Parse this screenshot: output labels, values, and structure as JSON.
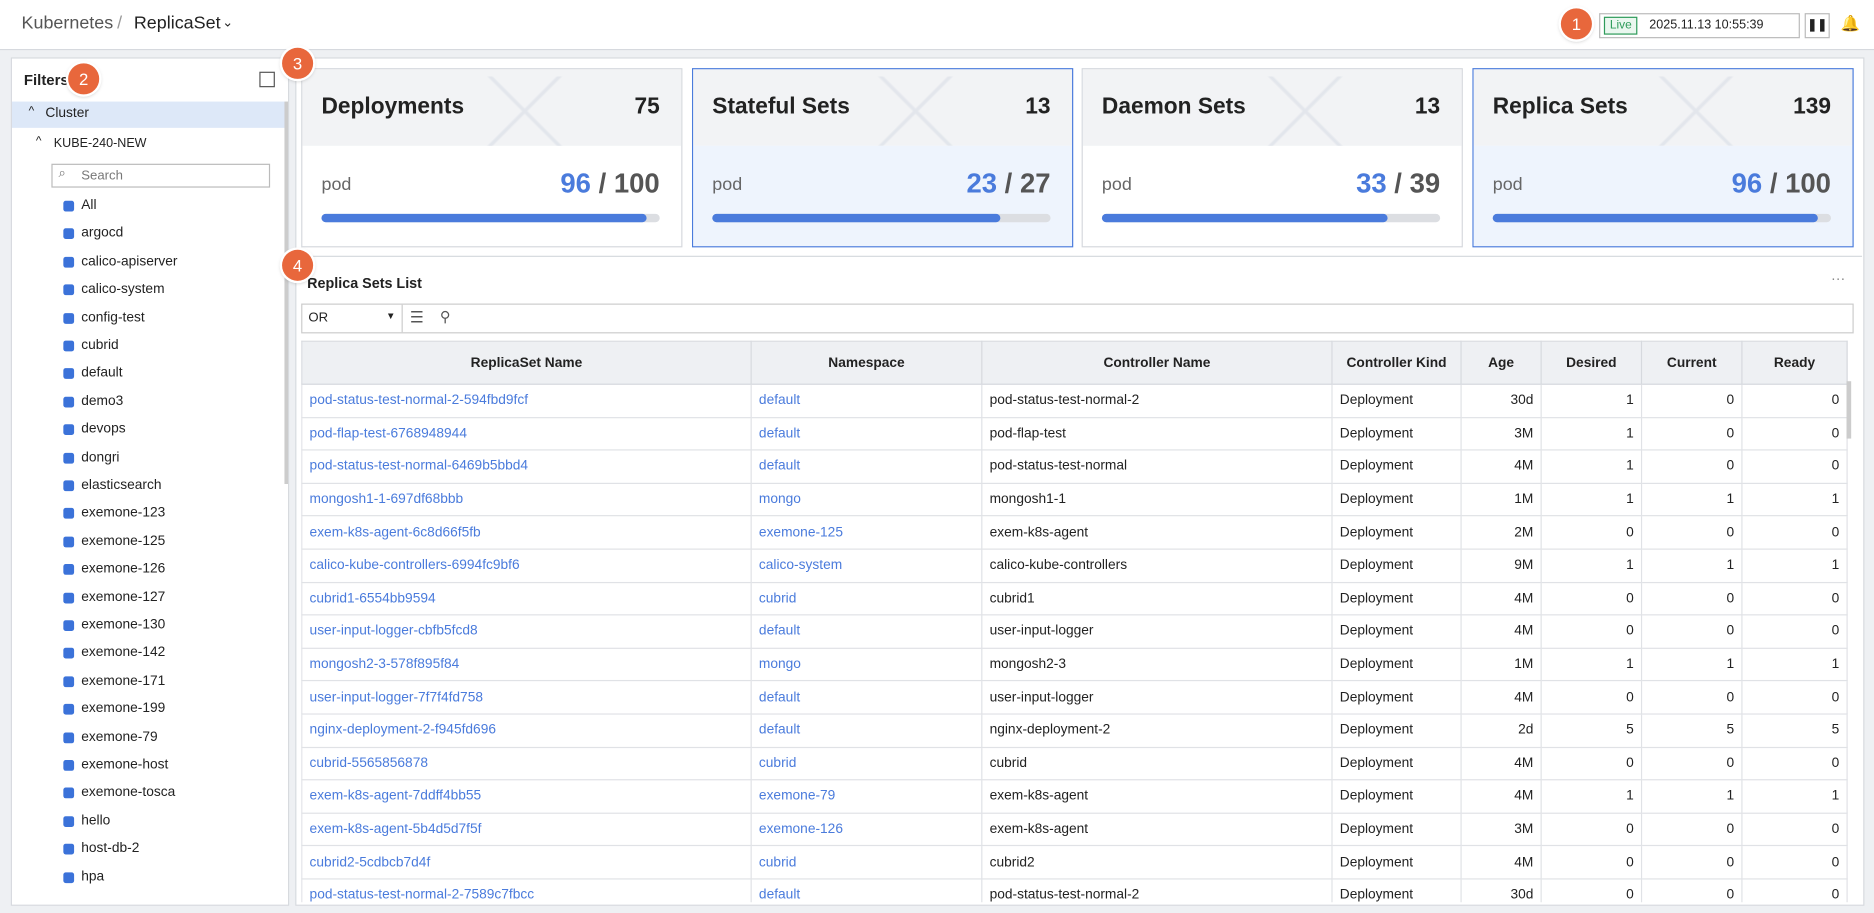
{
  "header": {
    "breadcrumb": [
      "Kubernetes",
      "ReplicaSet"
    ],
    "live": "Live",
    "timestamp": "2025.11.13 10:55:39"
  },
  "callouts": [
    "1",
    "2",
    "3",
    "4"
  ],
  "filters": {
    "title": "Filters",
    "cluster": "Cluster",
    "cluster_name": "KUBE-240-NEW",
    "search_placeholder": "Search",
    "items": [
      "All",
      "argocd",
      "calico-apiserver",
      "calico-system",
      "config-test",
      "cubrid",
      "default",
      "demo3",
      "devops",
      "dongri",
      "elasticsearch",
      "exemone-123",
      "exemone-125",
      "exemone-126",
      "exemone-127",
      "exemone-130",
      "exemone-142",
      "exemone-171",
      "exemone-199",
      "exemone-79",
      "exemone-host",
      "exemone-tosca",
      "hello",
      "host-db-2",
      "hpa"
    ]
  },
  "cards": [
    {
      "title": "Deployments",
      "count": "75",
      "label": "pod",
      "current": 96,
      "total": 100
    },
    {
      "title": "Stateful Sets",
      "count": "13",
      "label": "pod",
      "current": 23,
      "total": 27
    },
    {
      "title": "Daemon Sets",
      "count": "13",
      "label": "pod",
      "current": 33,
      "total": 39
    },
    {
      "title": "Replica Sets",
      "count": "139",
      "label": "pod",
      "current": 96,
      "total": 100
    }
  ],
  "table": {
    "title": "Replica Sets List",
    "operator": "OR",
    "columns": [
      "ReplicaSet Name",
      "Namespace",
      "Controller Name",
      "Controller Kind",
      "Age",
      "Desired",
      "Current",
      "Ready"
    ],
    "rows": [
      [
        "pod-status-test-normal-2-594fbd9fcf",
        "default",
        "pod-status-test-normal-2",
        "Deployment",
        "30d",
        "1",
        "0",
        "0"
      ],
      [
        "pod-flap-test-6768948944",
        "default",
        "pod-flap-test",
        "Deployment",
        "3M",
        "1",
        "0",
        "0"
      ],
      [
        "pod-status-test-normal-6469b5bbd4",
        "default",
        "pod-status-test-normal",
        "Deployment",
        "4M",
        "1",
        "0",
        "0"
      ],
      [
        "mongosh1-1-697df68bbb",
        "mongo",
        "mongosh1-1",
        "Deployment",
        "1M",
        "1",
        "1",
        "1"
      ],
      [
        "exem-k8s-agent-6c8d66f5fb",
        "exemone-125",
        "exem-k8s-agent",
        "Deployment",
        "2M",
        "0",
        "0",
        "0"
      ],
      [
        "calico-kube-controllers-6994fc9bf6",
        "calico-system",
        "calico-kube-controllers",
        "Deployment",
        "9M",
        "1",
        "1",
        "1"
      ],
      [
        "cubrid1-6554bb9594",
        "cubrid",
        "cubrid1",
        "Deployment",
        "4M",
        "0",
        "0",
        "0"
      ],
      [
        "user-input-logger-cbfb5fcd8",
        "default",
        "user-input-logger",
        "Deployment",
        "4M",
        "0",
        "0",
        "0"
      ],
      [
        "mongosh2-3-578f895f84",
        "mongo",
        "mongosh2-3",
        "Deployment",
        "1M",
        "1",
        "1",
        "1"
      ],
      [
        "user-input-logger-7f7f4fd758",
        "default",
        "user-input-logger",
        "Deployment",
        "4M",
        "0",
        "0",
        "0"
      ],
      [
        "nginx-deployment-2-f945fd696",
        "default",
        "nginx-deployment-2",
        "Deployment",
        "2d",
        "5",
        "5",
        "5"
      ],
      [
        "cubrid-5565856878",
        "cubrid",
        "cubrid",
        "Deployment",
        "4M",
        "0",
        "0",
        "0"
      ],
      [
        "exem-k8s-agent-7ddff4bb55",
        "exemone-79",
        "exem-k8s-agent",
        "Deployment",
        "4M",
        "1",
        "1",
        "1"
      ],
      [
        "exem-k8s-agent-5b4d5d7f5f",
        "exemone-126",
        "exem-k8s-agent",
        "Deployment",
        "3M",
        "0",
        "0",
        "0"
      ],
      [
        "cubrid2-5cdbcb7d4f",
        "cubrid",
        "cubrid2",
        "Deployment",
        "4M",
        "0",
        "0",
        "0"
      ],
      [
        "pod-status-test-normal-2-7589c7fbcc",
        "default",
        "pod-status-test-normal-2",
        "Deployment",
        "30d",
        "0",
        "0",
        "0"
      ]
    ]
  }
}
